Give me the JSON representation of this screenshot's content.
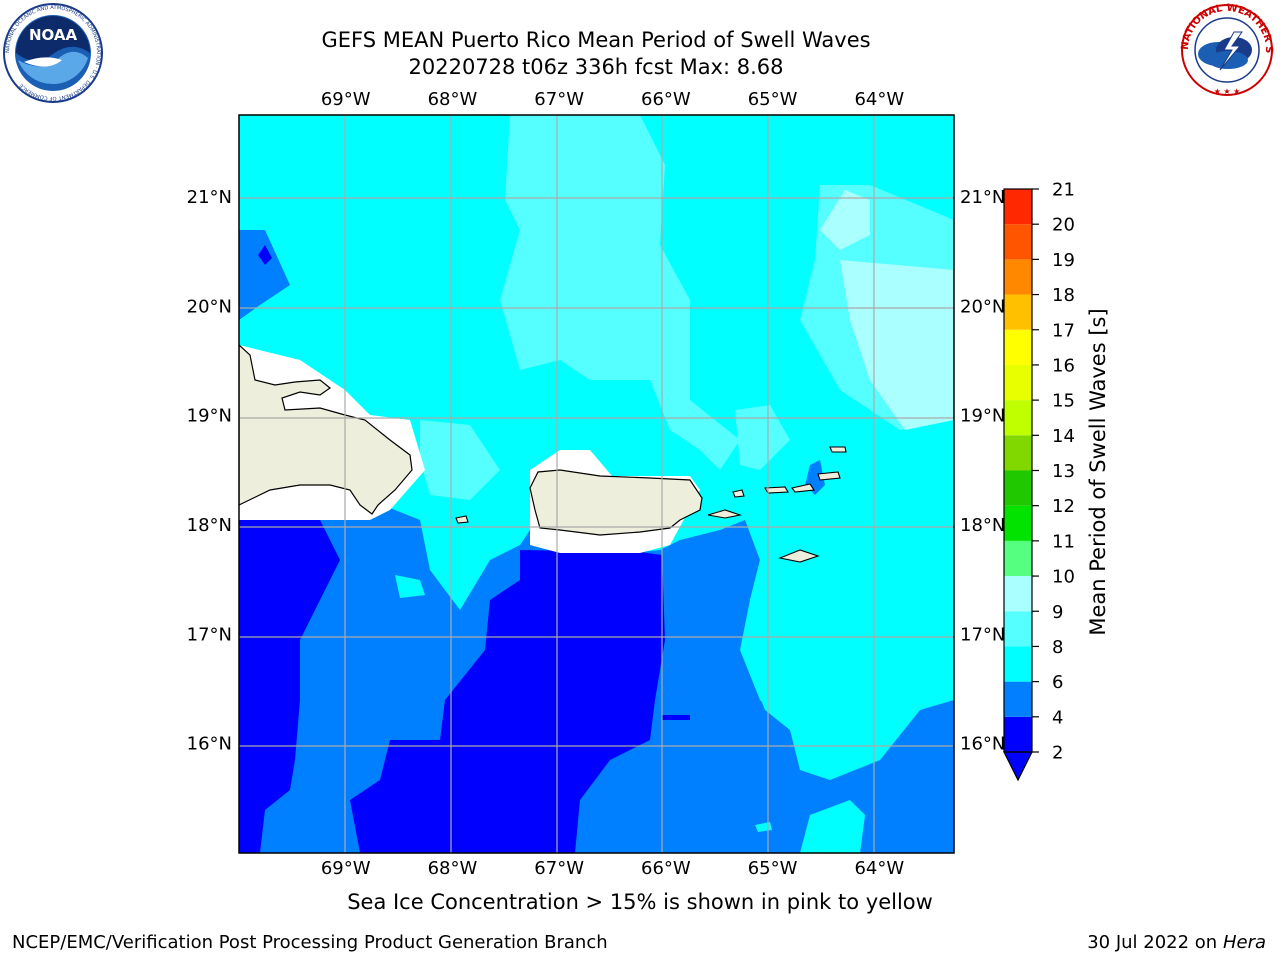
{
  "header": {
    "title_line1": "GEFS MEAN Puerto Rico Mean Period of Swell Waves",
    "title_line2": "20220728 t06z 336h fcst   Max: 8.68"
  },
  "logos": {
    "noaa_text": "NOAA",
    "noaa_ring_text": "NATIONAL OCEANIC AND ATMOSPHERIC ADMINISTRATION · U.S. DEPARTMENT OF COMMERCE",
    "nws_ring_text": "NATIONAL WEATHER SERVICE"
  },
  "chart_data": {
    "type": "heatmap",
    "longitude_ticks": [
      "69°W",
      "68°W",
      "67°W",
      "66°W",
      "65°W",
      "64°W"
    ],
    "latitude_ticks": [
      "21°N",
      "20°N",
      "19°N",
      "18°N",
      "17°N",
      "16°N"
    ],
    "lon_range": [
      -70.0,
      -63.3
    ],
    "lat_range": [
      15.0,
      21.75
    ],
    "colorbar": {
      "label": "Mean Period of Swell Waves [s]",
      "ticks": [
        "2",
        "4",
        "6",
        "8",
        "9",
        "10",
        "11",
        "12",
        "13",
        "14",
        "15",
        "16",
        "17",
        "18",
        "19",
        "20",
        "21"
      ],
      "levels": [
        2,
        4,
        6,
        8,
        9,
        10,
        11,
        12,
        13,
        14,
        15,
        16,
        17,
        18,
        19,
        20,
        21
      ],
      "colors": [
        "#0000ff",
        "#0080ff",
        "#00ffff",
        "#55ffff",
        "#aaffff",
        "#55ff7f",
        "#00e400",
        "#20c800",
        "#80d800",
        "#c0ff00",
        "#e8ff00",
        "#ffff00",
        "#ffc000",
        "#ff8800",
        "#ff5500",
        "#ff2800",
        "#ff0000"
      ],
      "extend": "min"
    },
    "field_classes": {
      "lt_2": "#0000ff",
      "2_4": "#0080ff",
      "4_6": "#00ffff",
      "6_8": "#55ffff",
      "8_9": "#aaffff"
    },
    "max_value": 8.68,
    "land_color": "#eeeedd"
  },
  "footer": {
    "sea_ice_note": "Sea Ice Concentration > 15% is shown in pink to yellow",
    "credit": "NCEP/EMC/Verification Post Processing Product Generation Branch",
    "date": "30 Jul 2022 on",
    "host": "Hera"
  }
}
